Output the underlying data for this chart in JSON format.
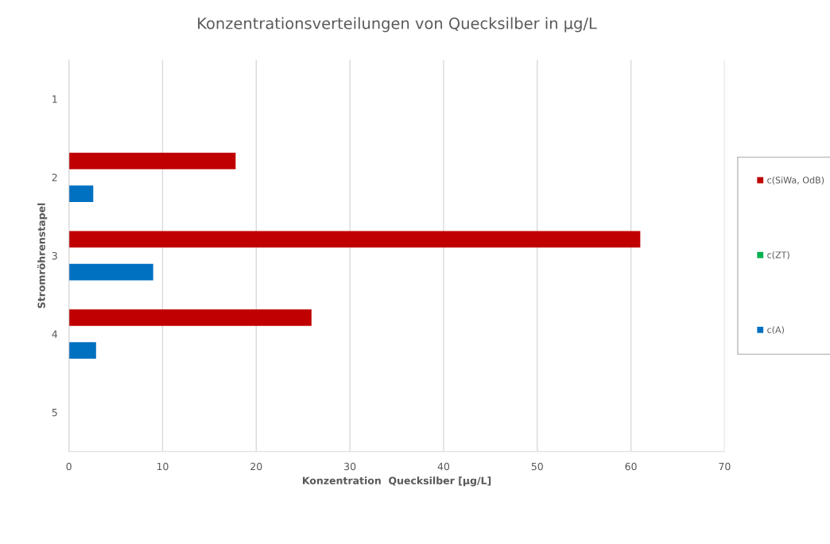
{
  "chart_data": {
    "type": "bar",
    "orientation": "horizontal",
    "title": "Konzentrationsverteilungen von Quecksilber in µg/L",
    "xlabel": "Konzentration  Quecksilber [µg/L]",
    "ylabel": "Stromröhrenstapel",
    "categories": [
      "1",
      "2",
      "3",
      "4",
      "5"
    ],
    "series": [
      {
        "name": "c(SiWa, OdB)",
        "color": "#c00000",
        "values": [
          null,
          17.8,
          61.0,
          25.9,
          null
        ]
      },
      {
        "name": "c(ZT)",
        "color": "#00b050",
        "values": [
          null,
          null,
          null,
          null,
          null
        ]
      },
      {
        "name": "c(A)",
        "color": "#0070c0",
        "values": [
          null,
          2.6,
          9.0,
          2.9,
          null
        ]
      }
    ],
    "xlim": [
      0,
      70
    ],
    "xticks": [
      0,
      10,
      20,
      30,
      40,
      50,
      60,
      70
    ],
    "grid": "x",
    "legend": "right"
  }
}
